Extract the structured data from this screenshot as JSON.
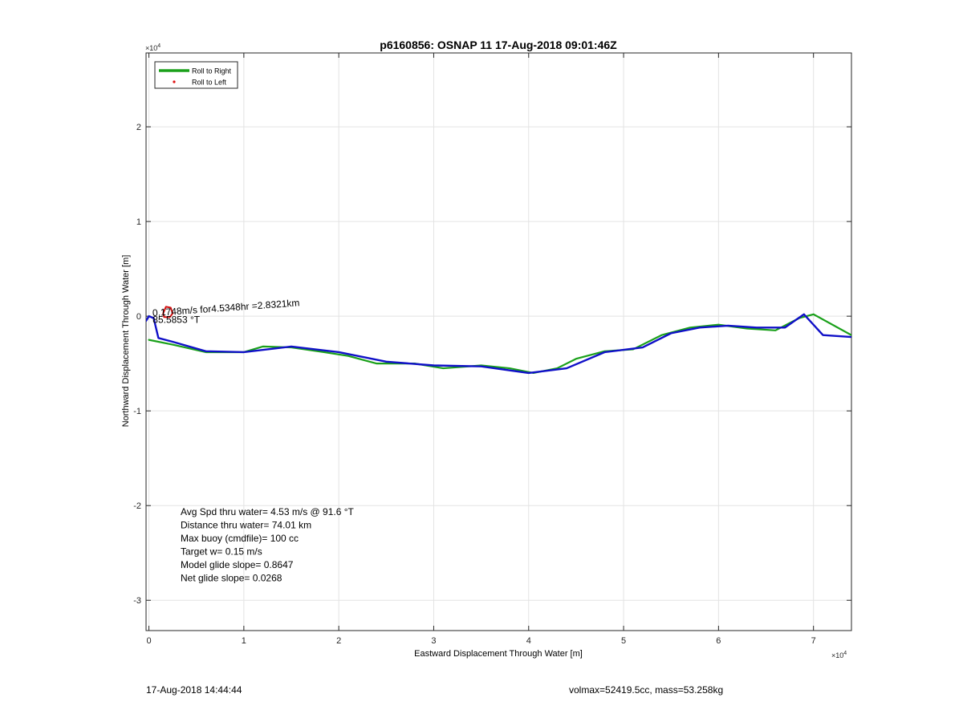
{
  "chart_data": {
    "type": "line",
    "title": "p6160856: OSNAP 11 17-Aug-2018 09:01:46Z",
    "xlabel": "Eastward Displacement Through Water [m]",
    "ylabel": "Northward Displacement Through Water [m]",
    "x_multiplier": "×10",
    "x_exponent": "4",
    "y_multiplier": "×10",
    "y_exponent": "4",
    "xlim": [
      -0.03,
      7.4
    ],
    "ylim": [
      -3.32,
      2.78
    ],
    "xticks": [
      0,
      1,
      2,
      3,
      4,
      5,
      6,
      7
    ],
    "yticks": [
      -3,
      -2,
      -1,
      0,
      1,
      2
    ],
    "grid": true,
    "legend": {
      "position": "top-left",
      "entries": [
        {
          "label": "Roll to Right",
          "color": "#1aa01a",
          "marker": "line"
        },
        {
          "label": "Roll to Left",
          "color": "#e01010",
          "marker": "dot"
        }
      ]
    },
    "series": [
      {
        "color": "#1aa01a",
        "x": [
          0,
          0.25,
          0.6,
          1.0,
          1.2,
          1.5,
          1.85,
          2.1,
          2.4,
          2.8,
          3.1,
          3.5,
          3.8,
          4.05,
          4.3,
          4.5,
          4.8,
          5.1,
          5.4,
          5.7,
          6.0,
          6.3,
          6.6,
          6.85,
          7.0,
          7.4
        ],
        "y": [
          -0.25,
          -0.3,
          -0.38,
          -0.38,
          -0.32,
          -0.33,
          -0.38,
          -0.42,
          -0.5,
          -0.5,
          -0.55,
          -0.52,
          -0.55,
          -0.6,
          -0.55,
          -0.45,
          -0.37,
          -0.35,
          -0.2,
          -0.12,
          -0.09,
          -0.13,
          -0.15,
          -0.02,
          0.02,
          -0.2
        ]
      },
      {
        "color": "#1010c8",
        "x": [
          -0.03,
          0.0,
          0.05,
          0.1,
          0.25,
          0.6,
          1.0,
          1.5,
          2.0,
          2.5,
          3.0,
          3.5,
          4.0,
          4.4,
          4.8,
          5.2,
          5.5,
          5.8,
          6.1,
          6.4,
          6.7,
          6.9,
          7.1,
          7.4
        ],
        "y": [
          -0.05,
          0.0,
          -0.02,
          -0.23,
          -0.27,
          -0.37,
          -0.38,
          -0.32,
          -0.38,
          -0.48,
          -0.52,
          -0.53,
          -0.6,
          -0.55,
          -0.38,
          -0.33,
          -0.18,
          -0.12,
          -0.1,
          -0.12,
          -0.12,
          0.02,
          -0.2,
          -0.22
        ]
      },
      {
        "color": "#d01010",
        "x": [
          0.15,
          0.18,
          0.23,
          0.25,
          0.22,
          0.16,
          0.15
        ],
        "y": [
          0.03,
          0.1,
          0.09,
          0.03,
          -0.01,
          -0.01,
          0.03
        ]
      }
    ],
    "annotations": [
      {
        "text": "0.1748m/s for4.5348hr =2.8321km",
        "x": 0.04,
        "y": 0.0,
        "rotation": -4
      },
      {
        "text": "85.5853 °T",
        "x": 0.04,
        "y": -0.07
      }
    ],
    "stats": [
      "Avg Spd thru water=  4.53 m/s @  91.6 °T",
      "Distance thru water= 74.01 km",
      "Max buoy (cmdfile)= 100 cc",
      "Target w= 0.15 m/s",
      "Model glide slope= 0.8647",
      "Net glide slope= 0.0268"
    ],
    "colors": {
      "green": "#1aa01a",
      "blue": "#1010c8",
      "red": "#d01010",
      "annotation": "#000000"
    }
  },
  "footer": {
    "left": "17-Aug-2018 14:44:44",
    "right": "volmax=52419.5cc, mass=53.258kg"
  }
}
